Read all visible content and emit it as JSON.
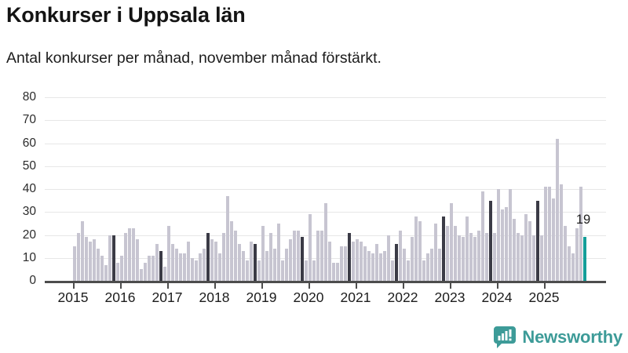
{
  "header": {
    "title": "Konkurser i Uppsala län",
    "subtitle": "Antal konkurser per månad, november månad förstärkt."
  },
  "chart_data": {
    "type": "bar",
    "title": "Konkurser i Uppsala län",
    "subtitle": "Antal konkurser per månad, november månad förstärkt.",
    "description": "Monthly count of bankruptcies in Uppsala county, Jan 2015 - Nov 2025. November bars are dark; the latest bar (November 2025) is teal and labeled with its value.",
    "ylim": [
      0,
      80
    ],
    "y_ticks": [
      0,
      10,
      20,
      30,
      40,
      50,
      60,
      70,
      80
    ],
    "x_tick_labels": [
      "2015",
      "2016",
      "2017",
      "2018",
      "2019",
      "2020",
      "2021",
      "2022",
      "2023",
      "2024",
      "2025"
    ],
    "grid": "horizontal",
    "legend": "none",
    "highlight_rule": "november-dark, last-bar-teal",
    "last_value_label": "19",
    "years": [
      {
        "year": "2015",
        "values": [
          15,
          21,
          26,
          19,
          17,
          18,
          14,
          11,
          7,
          20,
          20,
          8
        ]
      },
      {
        "year": "2016",
        "values": [
          11,
          21,
          23,
          23,
          18,
          5,
          8,
          11,
          11,
          16,
          13,
          6
        ]
      },
      {
        "year": "2017",
        "values": [
          24,
          16,
          14,
          12,
          12,
          17,
          10,
          9,
          12,
          14,
          21,
          18
        ]
      },
      {
        "year": "2018",
        "values": [
          17,
          12,
          21,
          37,
          26,
          22,
          16,
          13,
          9,
          17,
          16,
          9
        ]
      },
      {
        "year": "2019",
        "values": [
          24,
          13,
          21,
          14,
          25,
          9,
          14,
          18,
          22,
          22,
          19,
          9
        ]
      },
      {
        "year": "2020",
        "values": [
          29,
          9,
          22,
          22,
          34,
          17,
          8,
          8,
          15,
          15,
          21,
          17
        ]
      },
      {
        "year": "2021",
        "values": [
          18,
          17,
          15,
          13,
          12,
          16,
          12,
          13,
          20,
          9,
          16,
          22
        ]
      },
      {
        "year": "2022",
        "values": [
          14,
          9,
          19,
          28,
          26,
          9,
          12,
          14,
          25,
          14,
          28,
          24
        ]
      },
      {
        "year": "2023",
        "values": [
          34,
          24,
          20,
          19,
          28,
          21,
          19,
          22,
          39,
          21,
          35,
          21
        ]
      },
      {
        "year": "2024",
        "values": [
          40,
          31,
          32,
          40,
          27,
          21,
          20,
          29,
          26,
          20,
          35,
          20
        ]
      },
      {
        "year": "2025",
        "values": [
          41,
          41,
          36,
          62,
          42,
          24,
          15,
          12,
          23,
          41,
          19
        ]
      }
    ]
  },
  "colors": {
    "bar_default": "#c7c5d1",
    "bar_november": "#3b3b46",
    "bar_highlight": "#149e99",
    "gridline": "#e7e7e7",
    "axis": "#4d4d4d",
    "text": "#1c1c1c",
    "logo": "#3d9b98"
  },
  "logo": {
    "name": "Newsworthy",
    "icon": "newsworthy-chart-bubble-icon"
  }
}
